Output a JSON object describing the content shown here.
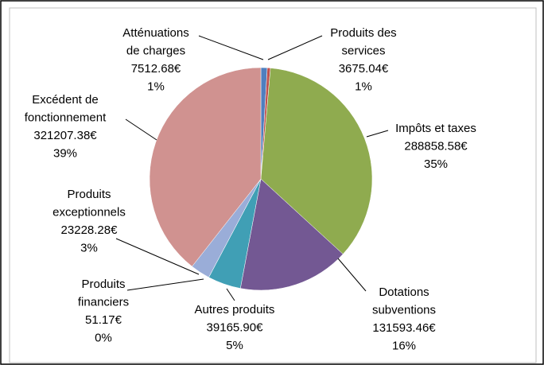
{
  "chart_data": {
    "type": "pie",
    "categories": [
      "Atténuations\nde charges",
      "Produits des\nservices",
      "Impôts et taxes",
      "Dotations\nsubventions",
      "Autres produits",
      "Produits\nfinanciers",
      "Produits\nexceptionnels",
      "Excédent de\nfonctionnement"
    ],
    "values": [
      7512.68,
      3675.04,
      288858.58,
      131593.46,
      39165.9,
      51.17,
      23228.28,
      321207.38
    ],
    "value_labels": [
      "7512.68€",
      "3675.04€",
      "288858.58€",
      "131593.46€",
      "39165.90€",
      "51.17€",
      "23228.28€",
      "321207.38€"
    ],
    "percent_labels": [
      "1%",
      "1%",
      "35%",
      "16%",
      "5%",
      "0%",
      "3%",
      "39%"
    ],
    "colors": [
      "#4f7fbf",
      "#c0504d",
      "#8fab4f",
      "#735893",
      "#409fb5",
      "#e8904a",
      "#9aadd8",
      "#d09290"
    ]
  }
}
